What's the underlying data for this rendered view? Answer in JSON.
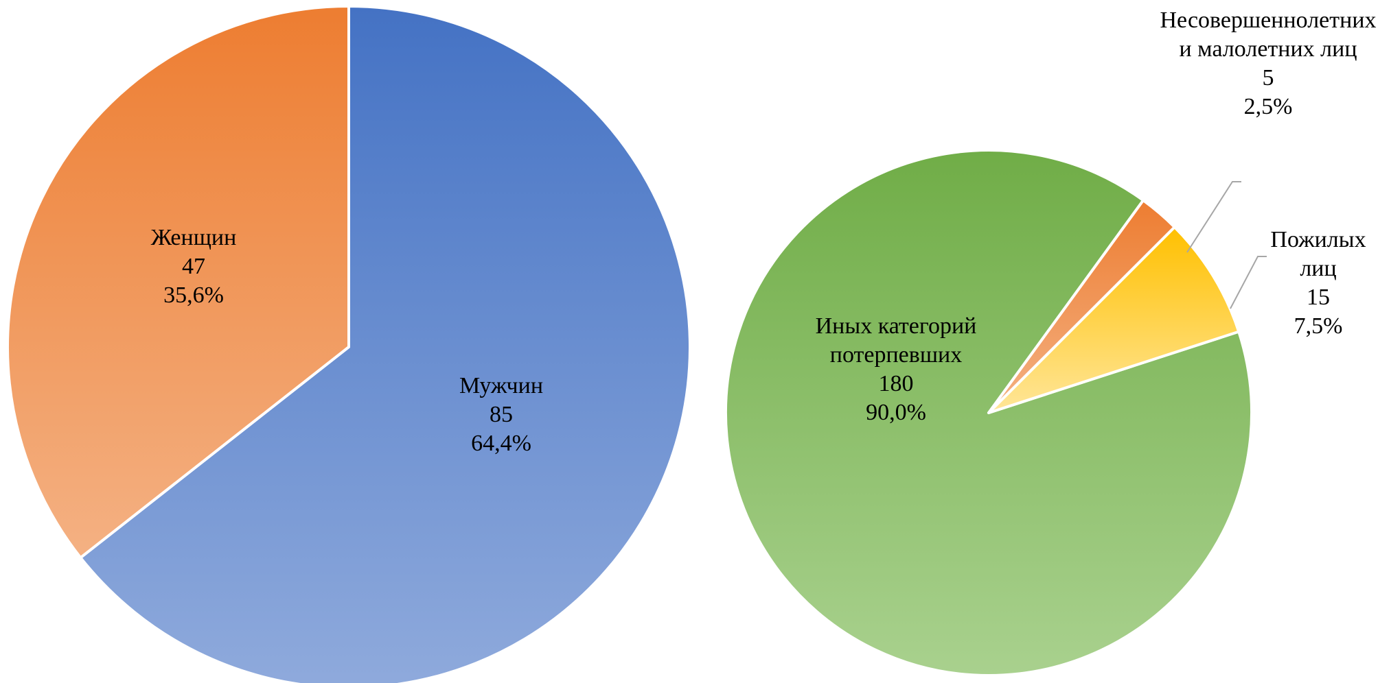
{
  "chart_data": [
    {
      "type": "pie",
      "title": "",
      "slices": [
        {
          "label": "Мужчин",
          "value": 85,
          "percent": "64,4%",
          "color_top": "#4472c4",
          "color_bottom": "#8faadc"
        },
        {
          "label": "Женщин",
          "value": 47,
          "percent": "35,6%",
          "color_top": "#ed7d31",
          "color_bottom": "#f4b183"
        }
      ]
    },
    {
      "type": "pie",
      "title": "",
      "slices": [
        {
          "label": "Иных категорий потерпевших",
          "label_lines": [
            "Иных категорий",
            "потерпевших"
          ],
          "value": 180,
          "percent": "90,0%",
          "color_top": "#70ad47",
          "color_bottom": "#a9d18e"
        },
        {
          "label": "Несовершеннолетних и малолетних лиц",
          "label_lines": [
            "Несовершеннолетних",
            "и малолетних лиц"
          ],
          "value": 5,
          "percent": "2,5%",
          "color_top": "#ed7d31",
          "color_bottom": "#f4b183"
        },
        {
          "label": "Пожилых лиц",
          "label_lines": [
            "Пожилых",
            "лиц"
          ],
          "value": 15,
          "percent": "7,5%",
          "color_top": "#ffc000",
          "color_bottom": "#ffe699"
        }
      ]
    }
  ]
}
